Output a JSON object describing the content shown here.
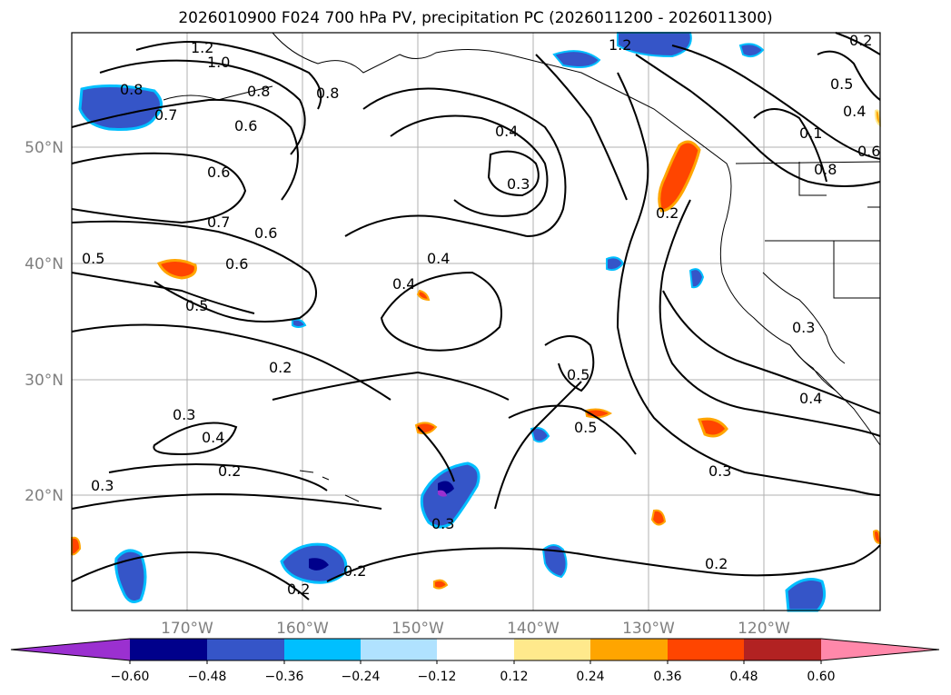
{
  "title": "2026010900 F024 700 hPa PV, precipitation PC (2026011200 - 2026011300)",
  "map": {
    "lat_labels": [
      "50°N",
      "40°N",
      "30°N",
      "20°N"
    ],
    "lon_labels": [
      "170°W",
      "160°W",
      "150°W",
      "140°W",
      "130°W",
      "120°W"
    ],
    "contour_labels": [
      "1.2",
      "1.0",
      "0.8",
      "0.7",
      "0.8",
      "0.6",
      "0.8",
      "0.7",
      "0.6",
      "0.6",
      "0.5",
      "0.5",
      "0.6",
      "0.4",
      "0.3",
      "0.4",
      "0.4",
      "0.2",
      "0.3",
      "0.4",
      "0.2",
      "0.3",
      "0.3",
      "0.2",
      "0.2",
      "0.5",
      "0.5",
      "0.3",
      "0.2",
      "0.3",
      "0.4",
      "0.2",
      "0.5",
      "0.4",
      "0.1",
      "0.8",
      "0.6",
      "0.2",
      "1.2"
    ]
  },
  "colorbar": {
    "ticks": [
      "−0.60",
      "−0.48",
      "−0.36",
      "−0.24",
      "−0.12",
      "0.12",
      "0.24",
      "0.36",
      "0.48",
      "0.60"
    ],
    "colors": [
      "#9b30d0",
      "#00008b",
      "#3555c8",
      "#00bfff",
      "#b0e2ff",
      "#ffffff",
      "#ffe98c",
      "#ffa500",
      "#ff4500",
      "#b22222",
      "#ff88aa"
    ]
  }
}
